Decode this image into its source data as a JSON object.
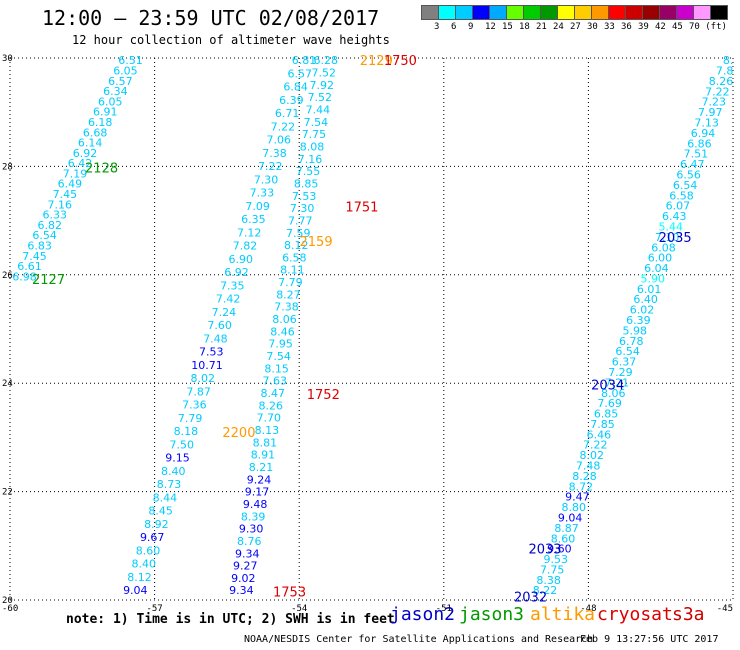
{
  "title": "12:00 – 23:59 UTC 02/08/2017",
  "subtitle": "12 hour collection of altimeter wave heights",
  "colorbar": {
    "colors": [
      "#808080",
      "#00ffff",
      "#00ccff",
      "#0000ff",
      "#00aaff",
      "#66ff00",
      "#00cc00",
      "#009900",
      "#ffff00",
      "#ffcc00",
      "#ff9900",
      "#ff0000",
      "#cc0000",
      "#990000",
      "#990066",
      "#cc00cc",
      "#ff99ff",
      "#000000"
    ],
    "labels": [
      "3",
      "6",
      "9",
      "12",
      "15",
      "18",
      "21",
      "24",
      "27",
      "30",
      "33",
      "36",
      "39",
      "42",
      "45",
      "70 (ft)"
    ]
  },
  "note": "note:  1) Time is in UTC;  2) SWH is in feet",
  "satellites": [
    {
      "name": "jason2",
      "color": "#0000cc"
    },
    {
      "name": "jason3",
      "color": "#009900"
    },
    {
      "name": "altika",
      "color": "#ff9900"
    },
    {
      "name": "cryosat",
      "color": "#dd0000"
    },
    {
      "name": "s3a",
      "color": "#cc0000"
    }
  ],
  "credit": "NOAA/NESDIS Center for Satellite Applications and Research",
  "timestamp": "Feb  9 13:27:56 UTC 2017",
  "chart_data": {
    "type": "scatter",
    "xlim": [
      -60,
      -45
    ],
    "ylim": [
      20,
      30
    ],
    "x_ticks": [
      -60,
      -57,
      -54,
      -51,
      -48,
      -45
    ],
    "x_tick_labels": [
      "-60",
      "-57",
      "-54",
      "-51",
      "-48",
      "-45"
    ],
    "y_ticks": [
      20,
      22,
      24,
      26,
      28,
      30
    ],
    "y_tick_labels": [
      "20",
      "22",
      "24",
      "26",
      "28",
      "30"
    ],
    "grid": true,
    "tracks": [
      {
        "x0": -57.5,
        "y0": 29.96,
        "x1": -59.7,
        "y1": 25.97,
        "values": [
          "6.51",
          "6.05",
          "6.57",
          "6.34",
          "6.05",
          "6.91",
          "6.18",
          "6.68",
          "6.14",
          "6.92",
          "6.42",
          "7.19",
          "6.49",
          "7.45",
          "7.16",
          "6.33",
          "6.82",
          "6.54",
          "6.83",
          "7.45",
          "6.61",
          "6.98"
        ],
        "colors": [
          "#00ccff",
          "#00ccff",
          "#00ccff",
          "#00ccff",
          "#00ccff",
          "#00ccff",
          "#00ccff",
          "#00ccff",
          "#00ccff",
          "#00ccff",
          "#00ccff",
          "#00ccff",
          "#00ccff",
          "#00ccff",
          "#00ccff",
          "#00ccff",
          "#00ccff",
          "#00ccff",
          "#00ccff",
          "#00ccff",
          "#00ccff",
          "#00ccff"
        ]
      },
      {
        "x0": -53.9,
        "y0": 29.96,
        "x1": -57.4,
        "y1": 20.18,
        "values": [
          "6.81",
          "6.57",
          "6.84",
          "6.39",
          "6.71",
          "7.22",
          "7.06",
          "7.38",
          "7.22",
          "7.30",
          "7.33",
          "7.09",
          "6.35",
          "7.12",
          "7.82",
          "6.90",
          "6.92",
          "7.35",
          "7.42",
          "7.24",
          "7.60",
          "7.48",
          "7.53",
          "10.71",
          "8.02",
          "7.87",
          "7.36",
          "7.79",
          "8.18",
          "7.50",
          "9.15",
          "8.40",
          "8.73",
          "8.44",
          "8.45",
          "8.92",
          "9.67",
          "8.60",
          "8.40",
          "8.12",
          "9.04"
        ],
        "colors": [
          "#00ccff",
          "#00ccff",
          "#00ccff",
          "#00ccff",
          "#00ccff",
          "#00ccff",
          "#00ccff",
          "#00ccff",
          "#00ccff",
          "#00ccff",
          "#00ccff",
          "#00ccff",
          "#00ccff",
          "#00ccff",
          "#00ccff",
          "#00ccff",
          "#00ccff",
          "#00ccff",
          "#00ccff",
          "#00ccff",
          "#00ccff",
          "#00ccff",
          "#0000ff",
          "#0000ff",
          "#00ccff",
          "#00ccff",
          "#00ccff",
          "#00ccff",
          "#00ccff",
          "#00ccff",
          "#0000ff",
          "#00ccff",
          "#00ccff",
          "#00ccff",
          "#00ccff",
          "#00ccff",
          "#0000ff",
          "#00ccff",
          "#00ccff",
          "#00ccff",
          "#0000ff"
        ]
      },
      {
        "x0": -53.45,
        "y0": 29.96,
        "x1": -55.2,
        "y1": 20.18,
        "values": [
          "6.28",
          "7.52",
          "7.92",
          "7.52",
          "7.44",
          "7.54",
          "7.75",
          "8.08",
          "7.16",
          "7.55",
          "8.85",
          "7.53",
          "7.30",
          "7.77",
          "7.59",
          "8.12",
          "6.58",
          "8.11",
          "7.79",
          "8.27",
          "7.38",
          "8.06",
          "8.46",
          "7.95",
          "7.54",
          "8.15",
          "7.63",
          "8.47",
          "8.26",
          "7.70",
          "8.13",
          "8.81",
          "8.91",
          "8.21",
          "9.24",
          "9.17",
          "9.48",
          "8.39",
          "9.30",
          "8.76",
          "9.34",
          "9.27",
          "9.02",
          "9.34"
        ],
        "colors": [
          "#00ccff",
          "#00ccff",
          "#00ccff",
          "#00ccff",
          "#00ccff",
          "#00ccff",
          "#00ccff",
          "#00ccff",
          "#00ccff",
          "#00ccff",
          "#00ccff",
          "#00ccff",
          "#00ccff",
          "#00ccff",
          "#00ccff",
          "#00ccff",
          "#00ccff",
          "#00ccff",
          "#00ccff",
          "#00ccff",
          "#00ccff",
          "#00ccff",
          "#00ccff",
          "#00ccff",
          "#00ccff",
          "#00ccff",
          "#00ccff",
          "#00ccff",
          "#00ccff",
          "#00ccff",
          "#00ccff",
          "#00ccff",
          "#00ccff",
          "#00ccff",
          "#0000ff",
          "#0000ff",
          "#0000ff",
          "#00ccff",
          "#0000ff",
          "#00ccff",
          "#0000ff",
          "#0000ff",
          "#0000ff",
          "#0000ff"
        ]
      },
      {
        "x0": -45.1,
        "y0": 29.96,
        "x1": -48.9,
        "y1": 20.18,
        "values": [
          "8.",
          "7.8",
          "8.26",
          "7.22",
          "7.23",
          "7.97",
          "7.13",
          "6.94",
          "6.86",
          "7.51",
          "6.47",
          "6.56",
          "6.54",
          "6.58",
          "6.07",
          "6.43",
          "5.44",
          "7.10",
          "6.08",
          "6.00",
          "6.04",
          "5.90",
          "6.01",
          "6.40",
          "6.02",
          "6.39",
          "5.98",
          "6.78",
          "6.54",
          "6.37",
          "7.29",
          "7.21",
          "8.06",
          "7.69",
          "6.85",
          "7.85",
          "6.46",
          "7.22",
          "8.02",
          "7.48",
          "8.28",
          "8.72",
          "9.47",
          "8.80",
          "9.04",
          "8.87",
          "8.60",
          "9.60",
          "9.53",
          "7.75",
          "8.38",
          "8.22"
        ],
        "colors": [
          "#00ccff",
          "#00ccff",
          "#00ccff",
          "#00ccff",
          "#00ccff",
          "#00ccff",
          "#00ccff",
          "#00ccff",
          "#00ccff",
          "#00ccff",
          "#00ccff",
          "#00ccff",
          "#00ccff",
          "#00ccff",
          "#00ccff",
          "#00ccff",
          "#00ffff",
          "#00ccff",
          "#00ccff",
          "#00ccff",
          "#00ccff",
          "#00ffff",
          "#00ccff",
          "#00ccff",
          "#00ccff",
          "#00ccff",
          "#00ccff",
          "#00ccff",
          "#00ccff",
          "#00ccff",
          "#00ccff",
          "#00ccff",
          "#00ccff",
          "#00ccff",
          "#00ccff",
          "#00ccff",
          "#00ccff",
          "#00ccff",
          "#00ccff",
          "#00ccff",
          "#00ccff",
          "#00ccff",
          "#0000ff",
          "#00ccff",
          "#0000ff",
          "#00ccff",
          "#00ccff",
          "#0000ff",
          "#00ccff",
          "#00ccff",
          "#00ccff",
          "#00ccff"
        ]
      }
    ],
    "time_labels": [
      {
        "text": "2128",
        "x": -58.1,
        "y": 27.98,
        "color": "#009900"
      },
      {
        "text": "2127",
        "x": -59.2,
        "y": 25.92,
        "color": "#009900"
      },
      {
        "text": "2129",
        "x": -52.4,
        "y": 29.96,
        "color": "#ff9900"
      },
      {
        "text": "1750",
        "x": -51.9,
        "y": 29.96,
        "color": "#dd0000"
      },
      {
        "text": "1751",
        "x": -52.7,
        "y": 27.26,
        "color": "#dd0000"
      },
      {
        "text": "2159",
        "x": -53.65,
        "y": 26.62,
        "color": "#ff9900"
      },
      {
        "text": "2200",
        "x": -55.25,
        "y": 23.1,
        "color": "#ff9900"
      },
      {
        "text": "1752",
        "x": -53.5,
        "y": 23.8,
        "color": "#dd0000"
      },
      {
        "text": "1753",
        "x": -54.2,
        "y": 20.16,
        "color": "#dd0000"
      },
      {
        "text": "2035",
        "x": -46.2,
        "y": 26.7,
        "color": "#0000cc"
      },
      {
        "text": "2034",
        "x": -47.6,
        "y": 23.98,
        "color": "#0000cc"
      },
      {
        "text": "2033",
        "x": -48.9,
        "y": 20.95,
        "color": "#0000cc"
      },
      {
        "text": "2032",
        "x": -49.2,
        "y": 20.06,
        "color": "#0000cc"
      }
    ]
  }
}
